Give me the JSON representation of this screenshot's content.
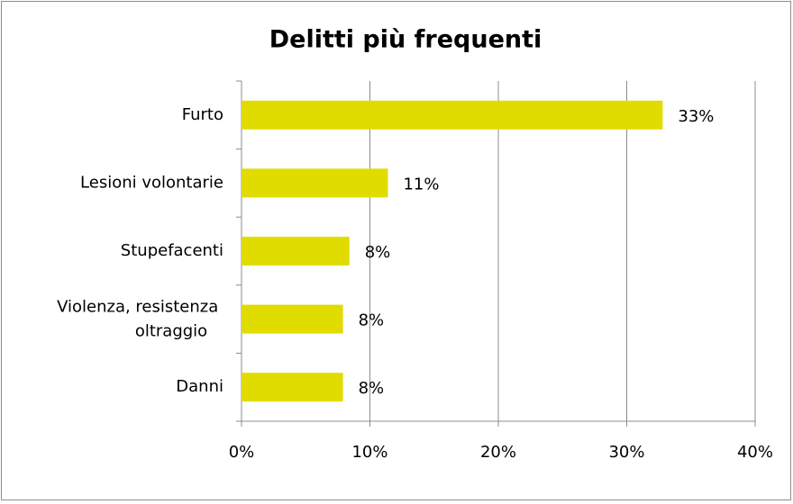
{
  "chart_data": {
    "type": "bar",
    "orientation": "horizontal",
    "title": "Delitti più frequenti",
    "categories": [
      "Furto",
      "Lesioni volontarie",
      "Stupefacenti",
      "Violenza, resistenza oltraggio",
      "Danni"
    ],
    "values": [
      32.8,
      11.4,
      8.4,
      7.9,
      7.9
    ],
    "value_labels": [
      "33%",
      "11%",
      "8%",
      "8%",
      "8%"
    ],
    "color": "#e1dc00",
    "xlim": [
      0,
      40
    ],
    "xticks": [
      {
        "value": 0,
        "label": "0%"
      },
      {
        "value": 10,
        "label": "10%"
      },
      {
        "value": 20,
        "label": "20%"
      },
      {
        "value": 30,
        "label": "30%"
      },
      {
        "value": 40,
        "label": "40%"
      }
    ],
    "grid": true
  }
}
